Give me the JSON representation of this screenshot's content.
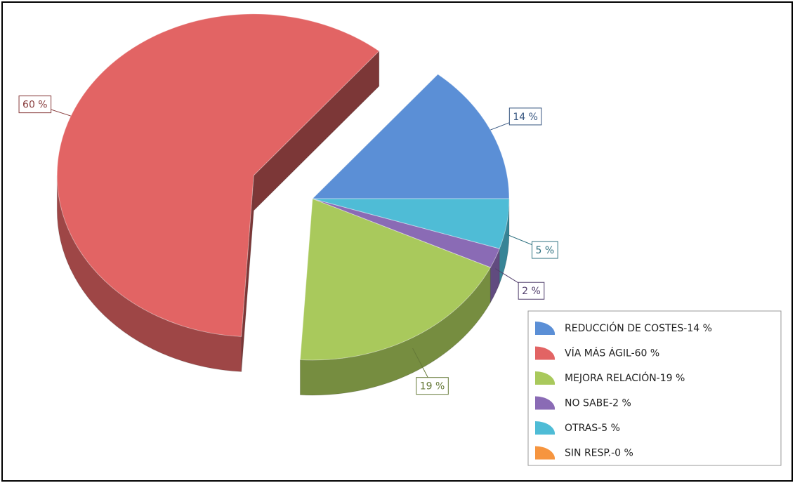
{
  "chart_data": {
    "type": "pie3d",
    "categories": [
      "REDUCCIÓN DE COSTES-14 %",
      "VÍA MÁS ÁGIL-60 %",
      "MEJORA RELACIÓN-19 %",
      "NO SABE-2 %",
      "OTRAS-5 %",
      "SIN RESP.-0 %"
    ],
    "values": [
      14,
      60,
      19,
      2,
      5,
      0
    ],
    "value_labels": [
      "14 %",
      "60 %",
      "19 %",
      "2 %",
      "5 %",
      null
    ],
    "colors": [
      "#5b8fd6",
      "#e26464",
      "#a9c95c",
      "#8a6bb5",
      "#4fbcd6",
      "#f6953f"
    ],
    "exploded": 1,
    "legend": "bottom-right"
  }
}
